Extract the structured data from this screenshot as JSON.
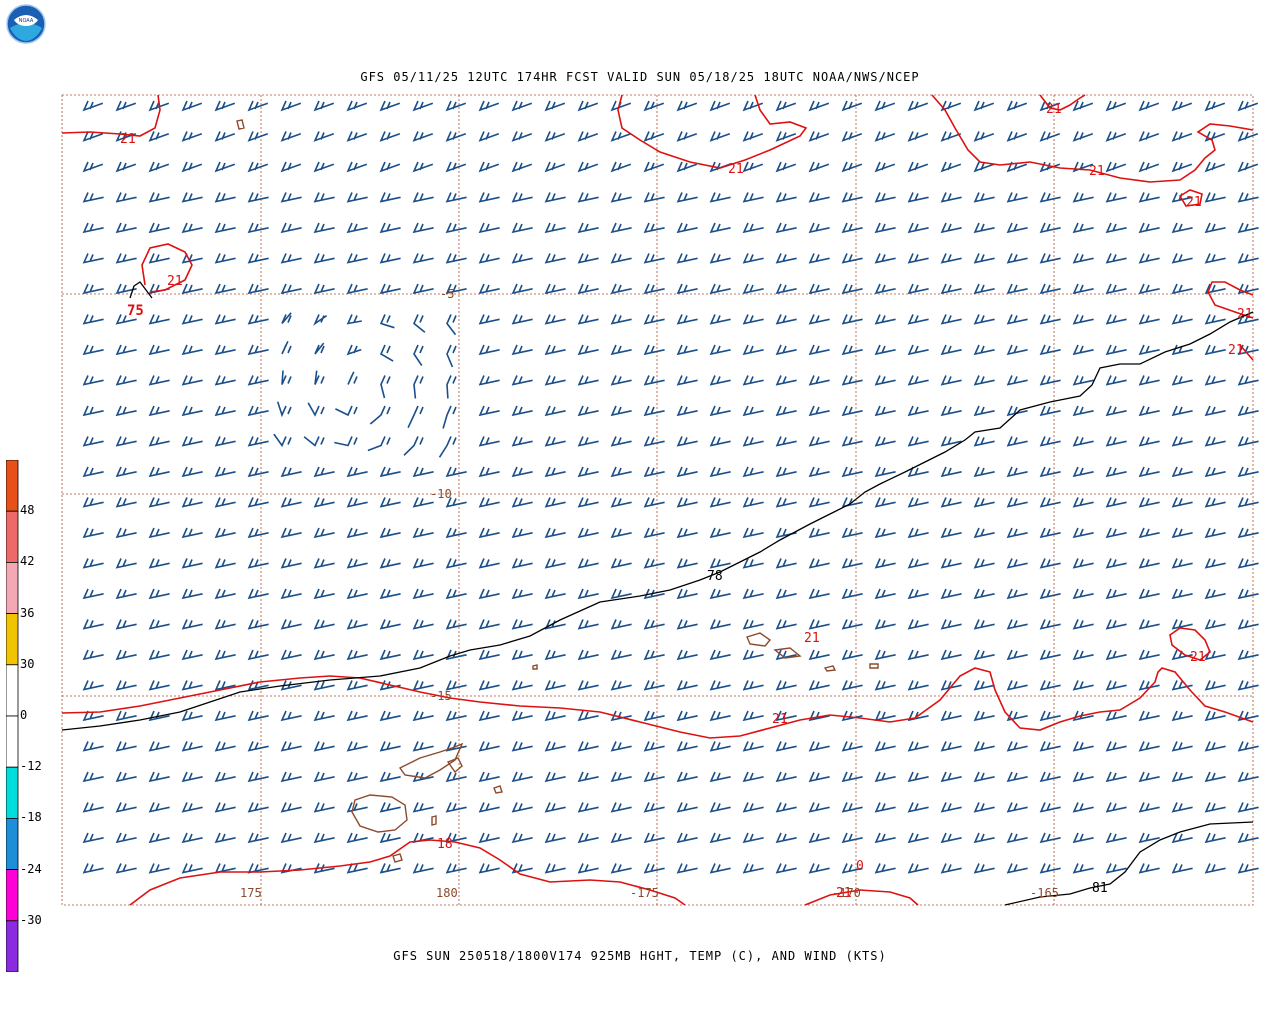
{
  "header": {
    "title": "GFS 05/11/25 12UTC 174HR FCST VALID SUN 05/18/25 18UTC NOAA/NWS/NCEP",
    "logo_text": "NOAA"
  },
  "footer": {
    "title": "GFS SUN 250518/1800V174 925MB HGHT, TEMP (C), AND WIND (KTS)"
  },
  "colors": {
    "wind_barb": "#1a4f8a",
    "temperature_contour": "#dd1111",
    "height_contour": "#000000",
    "coastline": "#8b4a2b",
    "grid": "#b05030"
  },
  "color_scale": {
    "labels": [
      "48",
      "42",
      "36",
      "30",
      "0",
      "-12",
      "-18",
      "-24",
      "-30"
    ],
    "colors": [
      "#e8501a",
      "#ee6a6a",
      "#f4a8b4",
      "#f0c400",
      "#ffffff",
      "#ffffff",
      "#00dddd",
      "#1c8fd8",
      "#ff00d8",
      "#8a2be2"
    ]
  },
  "map": {
    "longitude_labels": [
      "175",
      "180",
      "-175",
      "-170",
      "-165"
    ],
    "latitude_labels": [
      "-5",
      "-10",
      "-15"
    ],
    "height_contour_labels": [
      "75",
      "78",
      "81"
    ],
    "temperature_labels": [
      "21",
      "21",
      "21",
      "21",
      "21",
      "21",
      "21",
      "21",
      "21",
      "21",
      "21",
      "21",
      "18"
    ],
    "freezing_label": "0"
  }
}
